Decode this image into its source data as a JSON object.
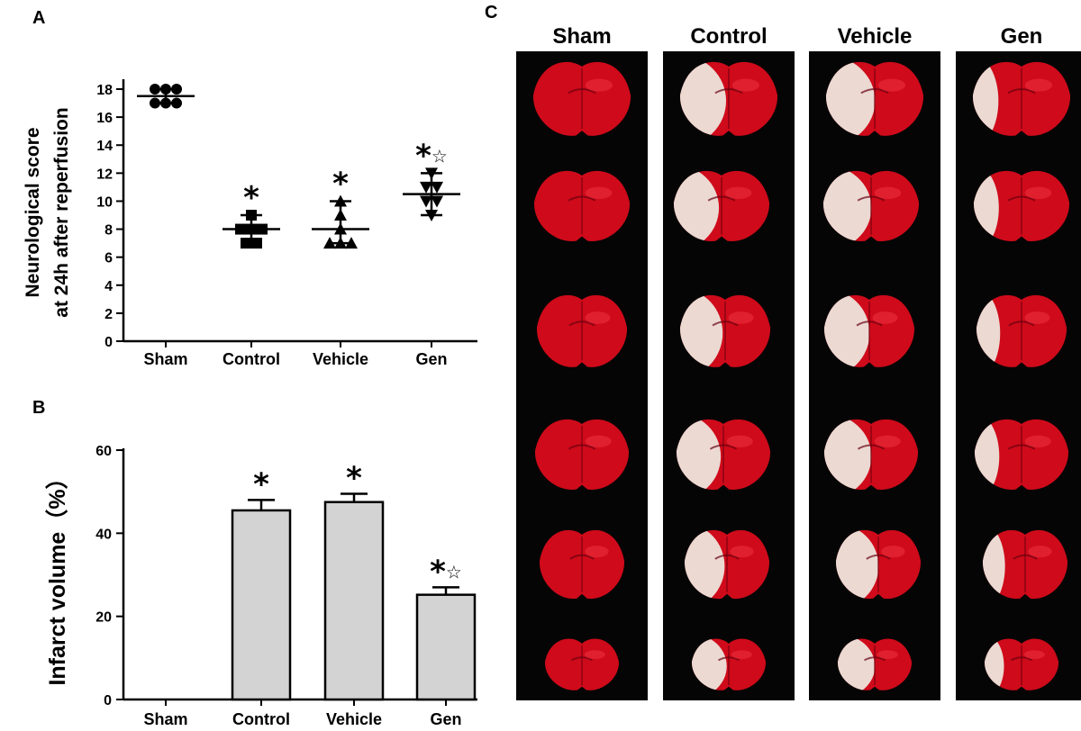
{
  "panel_labels": {
    "a": "A",
    "b": "B",
    "c": "C"
  },
  "chart_data": [
    {
      "panel": "A",
      "type": "scatter",
      "ylabel_line1": "Neurological score",
      "ylabel_line2": "at 24h after reperfusion",
      "categories": [
        "Sham",
        "Control",
        "Vehicle",
        "Gen"
      ],
      "ylim": [
        0,
        18
      ],
      "yticks": [
        0,
        2,
        4,
        6,
        8,
        10,
        12,
        14,
        16,
        18
      ],
      "grid": false,
      "marker_shapes": [
        "circle",
        "square",
        "triangle-up",
        "triangle-down"
      ],
      "points": [
        [
          17,
          17,
          17,
          18,
          18,
          18
        ],
        [
          7,
          7,
          8,
          8,
          8,
          9
        ],
        [
          7,
          7,
          7,
          8,
          9,
          10
        ],
        [
          9,
          10,
          10,
          11,
          11,
          12
        ]
      ],
      "means": [
        17.5,
        8,
        8,
        10.5
      ],
      "sd_low": [
        17,
        7,
        7,
        9
      ],
      "sd_high": [
        18,
        9,
        10,
        12
      ],
      "annotations": [
        "",
        "*",
        "*",
        "*☆"
      ]
    },
    {
      "panel": "B",
      "type": "bar",
      "ylabel": "Infarct volume（%）",
      "categories": [
        "Sham",
        "Control",
        "Vehicle",
        "Gen"
      ],
      "values": [
        0,
        45.5,
        47.5,
        25.2
      ],
      "errors": [
        0,
        2.5,
        2.0,
        1.8
      ],
      "ylim": [
        0,
        60
      ],
      "yticks": [
        0,
        20,
        40,
        60
      ],
      "grid": false,
      "bar_color": "#d3d3d3",
      "annotations": [
        "",
        "*",
        "*",
        "*☆"
      ]
    }
  ],
  "panel_c": {
    "columns": [
      "Sham",
      "Control",
      "Vehicle",
      "Gen"
    ],
    "rows": 6,
    "background": "#050505",
    "tissue_color": "#cf0a1a",
    "infarct_color": "#ece5dc",
    "infarct_fraction": [
      0,
      0.45,
      0.48,
      0.25
    ]
  }
}
